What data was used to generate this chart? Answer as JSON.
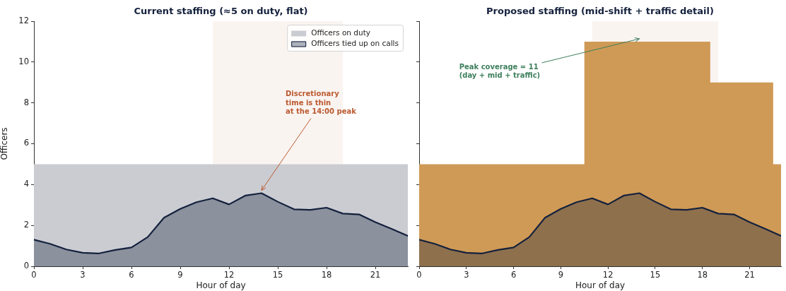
{
  "chart_data": [
    {
      "type": "area",
      "title": "Current staffing (≈5 on duty, flat)",
      "xlabel": "Hour of day",
      "ylabel": "Officers",
      "x": [
        0,
        1,
        2,
        3,
        4,
        5,
        6,
        7,
        8,
        9,
        10,
        11,
        12,
        13,
        14,
        15,
        16,
        17,
        18,
        19,
        20,
        21,
        22,
        23
      ],
      "xlim": [
        0,
        23
      ],
      "xticks": [
        0,
        3,
        6,
        9,
        12,
        15,
        18,
        21
      ],
      "ylim": [
        0,
        12
      ],
      "yticks": [
        0,
        2,
        4,
        6,
        8,
        10,
        12
      ],
      "legend": "top right",
      "series": [
        {
          "name": "Officers on duty",
          "color": "#cbccd2",
          "values": [
            5,
            5,
            5,
            5,
            5,
            5,
            5,
            5,
            5,
            5,
            5,
            5,
            5,
            5,
            5,
            5,
            5,
            5,
            5,
            5,
            5,
            5,
            5,
            5
          ]
        },
        {
          "name": "Officers tied up on calls",
          "color": "#14213d",
          "line_style": "solid",
          "values": [
            1.3,
            1.1,
            0.82,
            0.66,
            0.63,
            0.8,
            0.92,
            1.43,
            2.38,
            2.81,
            3.14,
            3.33,
            3.03,
            3.46,
            3.58,
            3.16,
            2.79,
            2.76,
            2.87,
            2.58,
            2.54,
            2.16,
            1.83,
            1.49
          ]
        }
      ],
      "bands": [
        {
          "axis": "x",
          "from": 11,
          "to": 19,
          "color": "#faf4f1"
        }
      ],
      "annotations": [
        {
          "text": "Discretionary\ntime is thin\nat the 14:00 peak",
          "x": 14,
          "y": 3.58
        }
      ]
    },
    {
      "type": "area",
      "title": "Proposed staffing (mid-shift + traffic detail)",
      "xlabel": "Hour of day",
      "x": [
        0,
        1,
        2,
        3,
        4,
        5,
        6,
        7,
        8,
        9,
        10,
        11,
        12,
        13,
        14,
        15,
        16,
        17,
        18,
        19,
        20,
        21,
        22,
        23
      ],
      "xlim": [
        0,
        23
      ],
      "xticks": [
        0,
        3,
        6,
        9,
        12,
        15,
        18,
        21
      ],
      "ylim": [
        0,
        12
      ],
      "yticks": [
        0,
        2,
        4,
        6,
        8,
        10,
        12
      ],
      "tick_labels": "x",
      "series": [
        {
          "color": "#cf9a56",
          "x": [
            0,
            10.5,
            10.5,
            18.5,
            18.5,
            22.5,
            22.5,
            23
          ],
          "values": [
            5,
            5,
            11,
            11,
            9,
            9,
            5,
            5
          ]
        },
        {
          "color": "#14213d",
          "line_style": "solid",
          "values": [
            1.3,
            1.1,
            0.82,
            0.66,
            0.63,
            0.8,
            0.92,
            1.43,
            2.38,
            2.81,
            3.14,
            3.33,
            3.03,
            3.46,
            3.58,
            3.16,
            2.79,
            2.76,
            2.87,
            2.58,
            2.54,
            2.16,
            1.83,
            1.49
          ]
        }
      ],
      "bands": [
        {
          "axis": "x",
          "from": 11,
          "to": 19,
          "color": "#faf4f1"
        }
      ],
      "annotations": [
        {
          "text": "Peak coverage = 11\n(day + mid + traffic)",
          "x": 14,
          "y": 11
        }
      ]
    }
  ]
}
